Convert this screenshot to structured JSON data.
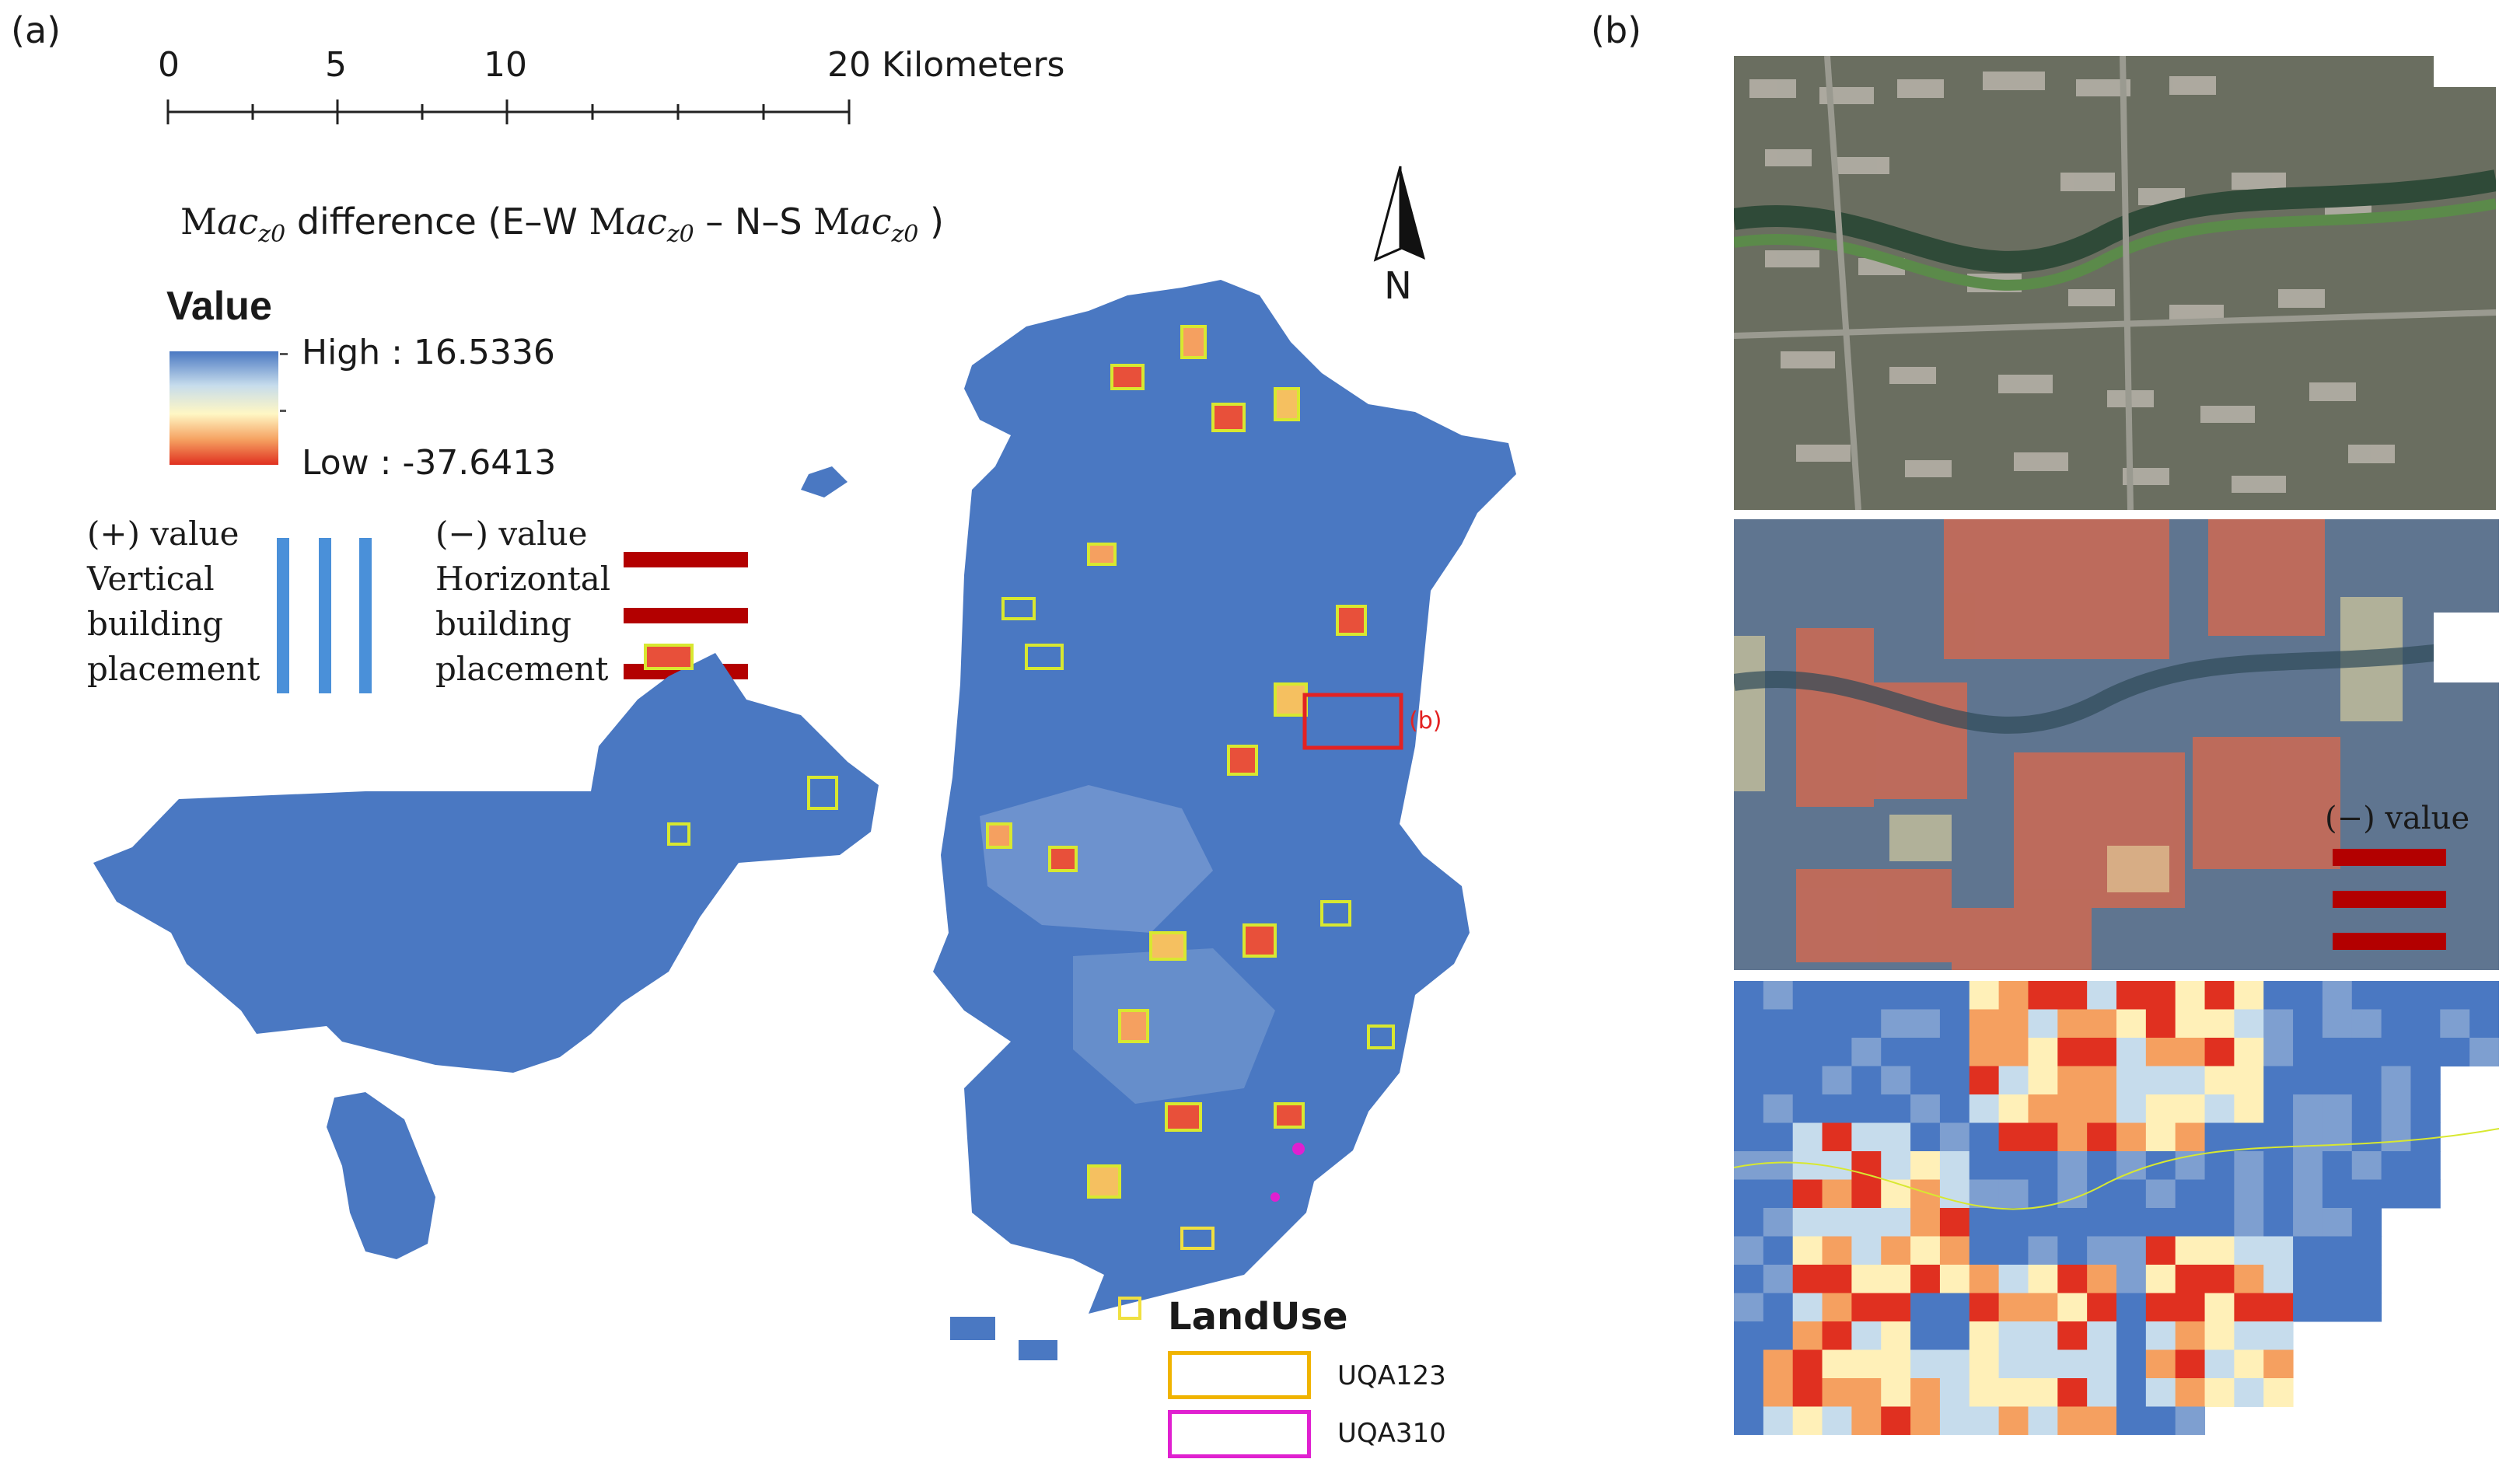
{
  "panels": {
    "a": "(a)",
    "b": "(b)"
  },
  "scale_bar": {
    "ticks": [
      "0",
      "5",
      "10",
      "20 Kilometers"
    ],
    "values_km": [
      0,
      5,
      10,
      20
    ]
  },
  "title": {
    "prefix": "M",
    "ac_sub": "ac",
    "z0": "z0",
    "text1": " difference (E–W ",
    "text2": " – N–S ",
    "text3": " )"
  },
  "north": "N",
  "legend": {
    "heading": "Value",
    "high": "High : 16.5336",
    "low": "Low : -37.6413",
    "high_value": 16.5336,
    "low_value": -37.6413,
    "ramp_colors": [
      "#4a78c2",
      "#c6dcec",
      "#fff7c4",
      "#f5a060",
      "#e03020"
    ]
  },
  "explain": {
    "positive": [
      "(+) value",
      "Vertical",
      "building",
      "placement"
    ],
    "negative": [
      "(−) value",
      "Horizontal",
      "building",
      "placement"
    ],
    "positive_color": "#4a90d9",
    "negative_color": "#b30000"
  },
  "inset_marker": "(b)",
  "landuse": {
    "heading": "LandUse",
    "items": [
      {
        "label": "UQA123",
        "color": "#f0b400"
      },
      {
        "label": "UQA310",
        "color": "#e020d0"
      }
    ]
  },
  "panel_b": {
    "neg_label": "(−) value"
  },
  "colors": {
    "map_blue": "#4a78c2",
    "highlight_red": "#e32222",
    "zone_yellow": "#d8e830"
  }
}
